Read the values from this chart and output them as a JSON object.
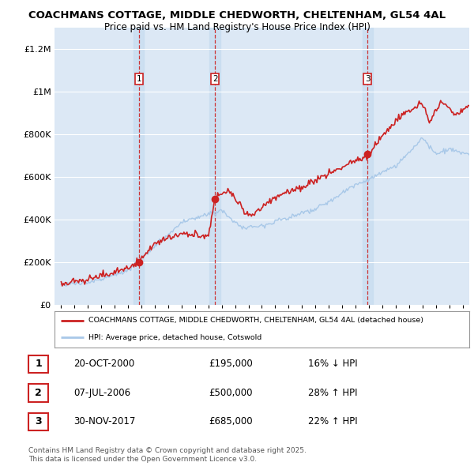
{
  "title1": "COACHMANS COTTAGE, MIDDLE CHEDWORTH, CHELTENHAM, GL54 4AL",
  "title2": "Price paid vs. HM Land Registry's House Price Index (HPI)",
  "hpi_color": "#a8c8e8",
  "price_color": "#cc2222",
  "background_color": "#ffffff",
  "plot_bg_color": "#dce8f5",
  "transaction_band_color": "#c8ddf0",
  "ylim": [
    0,
    1300000
  ],
  "yticks": [
    0,
    200000,
    400000,
    600000,
    800000,
    1000000,
    1200000
  ],
  "ytick_labels": [
    "£0",
    "£200K",
    "£400K",
    "£600K",
    "£800K",
    "£1M",
    "£1.2M"
  ],
  "transactions": [
    {
      "num": 1,
      "date": "20-OCT-2000",
      "price": 195000,
      "hpi_diff": "16% ↓ HPI",
      "x_year": 2000.8
    },
    {
      "num": 2,
      "date": "07-JUL-2006",
      "price": 500000,
      "hpi_diff": "28% ↑ HPI",
      "x_year": 2006.5
    },
    {
      "num": 3,
      "date": "30-NOV-2017",
      "price": 685000,
      "hpi_diff": "22% ↑ HPI",
      "x_year": 2017.9
    }
  ],
  "legend_label_red": "COACHMANS COTTAGE, MIDDLE CHEDWORTH, CHELTENHAM, GL54 4AL (detached house)",
  "legend_label_blue": "HPI: Average price, detached house, Cotswold",
  "footer": "Contains HM Land Registry data © Crown copyright and database right 2025.\nThis data is licensed under the Open Government Licence v3.0.",
  "xmin": 1994.5,
  "xmax": 2025.5
}
